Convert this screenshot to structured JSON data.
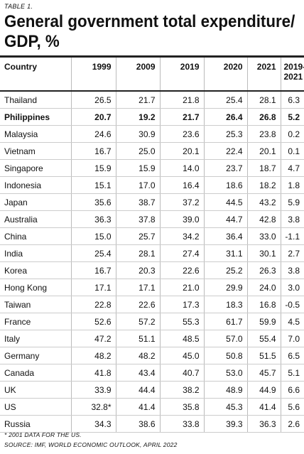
{
  "label": "TABLE 1.",
  "title": "General government total expenditure/ GDP, %",
  "table": {
    "header": [
      "Country",
      "1999",
      "2009",
      "2019",
      "2020",
      "2021",
      "2019-2021"
    ],
    "rows": [
      [
        "Thailand",
        "26.5",
        "21.7",
        "21.8",
        "25.4",
        "28.1",
        "6.3"
      ],
      [
        "Philippines",
        "20.7",
        "19.2",
        "21.7",
        "26.4",
        "26.8",
        "5.2"
      ],
      [
        "Malaysia",
        "24.6",
        "30.9",
        "23.6",
        "25.3",
        "23.8",
        "0.2"
      ],
      [
        "Vietnam",
        "16.7",
        "25.0",
        "20.1",
        "22.4",
        "20.1",
        "0.1"
      ],
      [
        "Singapore",
        "15.9",
        "15.9",
        "14.0",
        "23.7",
        "18.7",
        "4.7"
      ],
      [
        "Indonesia",
        "15.1",
        "17.0",
        "16.4",
        "18.6",
        "18.2",
        "1.8"
      ],
      [
        "Japan",
        "35.6",
        "38.7",
        "37.2",
        "44.5",
        "43.2",
        "5.9"
      ],
      [
        "Australia",
        "36.3",
        "37.8",
        "39.0",
        "44.7",
        "42.8",
        "3.8"
      ],
      [
        "China",
        "15.0",
        "25.7",
        "34.2",
        "36.4",
        "33.0",
        "-1.1"
      ],
      [
        "India",
        "25.4",
        "28.1",
        "27.4",
        "31.1",
        "30.1",
        "2.7"
      ],
      [
        "Korea",
        "16.7",
        "20.3",
        "22.6",
        "25.2",
        "26.3",
        "3.8"
      ],
      [
        "Hong Kong",
        "17.1",
        "17.1",
        "21.0",
        "29.9",
        "24.0",
        "3.0"
      ],
      [
        "Taiwan",
        "22.8",
        "22.6",
        "17.3",
        "18.3",
        "16.8",
        "-0.5"
      ],
      [
        "France",
        "52.6",
        "57.2",
        "55.3",
        "61.7",
        "59.9",
        "4.5"
      ],
      [
        "Italy",
        "47.2",
        "51.1",
        "48.5",
        "57.0",
        "55.4",
        "7.0"
      ],
      [
        "Germany",
        "48.2",
        "48.2",
        "45.0",
        "50.8",
        "51.5",
        "6.5"
      ],
      [
        "Canada",
        "41.8",
        "43.4",
        "40.7",
        "53.0",
        "45.7",
        "5.1"
      ],
      [
        "UK",
        "33.9",
        "44.4",
        "38.2",
        "48.9",
        "44.9",
        "6.6"
      ],
      [
        "US",
        "32.8*",
        "41.4",
        "35.8",
        "45.3",
        "41.4",
        "5.6"
      ],
      [
        "Russia",
        "34.3",
        "38.6",
        "33.8",
        "39.3",
        "36.3",
        "2.6"
      ]
    ]
  },
  "footnotes": [
    "* 2001 DATA FOR THE US.",
    "SOURCE: IMF, WORLD ECONOMIC OUTLOOK, APRIL 2022"
  ]
}
